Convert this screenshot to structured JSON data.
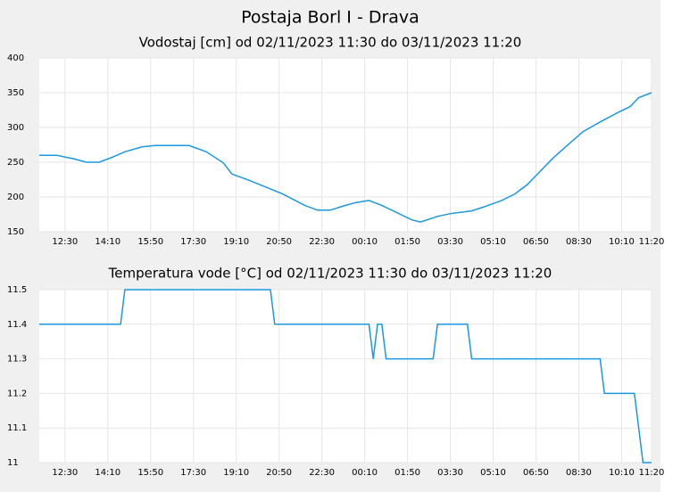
{
  "title": "Postaja Borl I - Drava",
  "chart_data": [
    {
      "type": "line",
      "title": "Vodostaj [cm] od 02/11/2023 11:30 do 03/11/2023 11:20",
      "color": "#1b98e0",
      "grid": true,
      "x": [
        "11:30",
        "12:10",
        "12:50",
        "13:20",
        "13:50",
        "14:20",
        "14:50",
        "15:30",
        "16:00",
        "17:20",
        "18:00",
        "18:40",
        "19:00",
        "19:40",
        "20:20",
        "21:00",
        "21:50",
        "22:20",
        "22:50",
        "23:20",
        "23:50",
        "00:20",
        "00:50",
        "01:30",
        "02:00",
        "02:20",
        "03:00",
        "03:30",
        "04:20",
        "04:50",
        "05:30",
        "06:00",
        "06:30",
        "07:00",
        "07:30",
        "08:10",
        "08:40",
        "09:20",
        "10:00",
        "10:30",
        "10:50",
        "11:20"
      ],
      "values": [
        260,
        260,
        255,
        250,
        250,
        257,
        265,
        272,
        274,
        274,
        265,
        249,
        233,
        224,
        214,
        204,
        188,
        181,
        181,
        187,
        192,
        195,
        188,
        176,
        167,
        164,
        172,
        176,
        180,
        186,
        195,
        204,
        218,
        237,
        256,
        278,
        294,
        308,
        321,
        330,
        343,
        350
      ],
      "xlim": [
        "11:30",
        "11:20"
      ],
      "xticks": [
        "12:30",
        "14:10",
        "15:50",
        "17:30",
        "19:10",
        "20:50",
        "22:30",
        "00:10",
        "01:50",
        "03:30",
        "05:10",
        "06:50",
        "08:30",
        "10:10",
        "11:20"
      ],
      "ylim": [
        150,
        400
      ],
      "yticks": [
        150,
        200,
        250,
        300,
        350,
        400
      ]
    },
    {
      "type": "line",
      "title": "Temperatura vode [°C] od 02/11/2023 11:30 do 03/11/2023 11:20",
      "color": "#1b98e0",
      "grid": true,
      "x": [
        "11:30",
        "14:40",
        "14:50",
        "20:30",
        "20:40",
        "00:20",
        "00:30",
        "00:40",
        "00:50",
        "01:00",
        "02:50",
        "03:00",
        "04:10",
        "04:20",
        "09:20",
        "09:30",
        "10:40",
        "10:50",
        "11:00",
        "11:20"
      ],
      "values": [
        11.4,
        11.4,
        11.5,
        11.5,
        11.4,
        11.4,
        11.3,
        11.4,
        11.4,
        11.3,
        11.3,
        11.4,
        11.4,
        11.3,
        11.3,
        11.2,
        11.2,
        11.1,
        11.0,
        11.0
      ],
      "xlim": [
        "11:30",
        "11:20"
      ],
      "xticks": [
        "12:30",
        "14:10",
        "15:50",
        "17:30",
        "19:10",
        "20:50",
        "22:30",
        "00:10",
        "01:50",
        "03:30",
        "05:10",
        "06:50",
        "08:30",
        "10:10",
        "11:20"
      ],
      "ylim": [
        11,
        11.5
      ],
      "yticks": [
        11,
        11.1,
        11.2,
        11.3,
        11.4,
        11.5
      ]
    }
  ]
}
